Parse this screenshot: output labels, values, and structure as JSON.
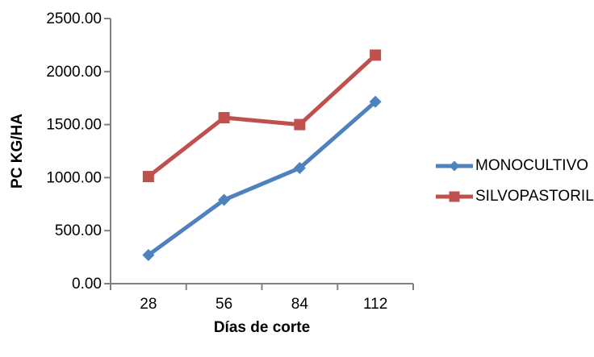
{
  "chart_data": {
    "type": "line",
    "title": "",
    "xlabel": "Días de corte",
    "ylabel": "PC KG/HA",
    "categories": [
      "28",
      "56",
      "84",
      "112"
    ],
    "series": [
      {
        "name": "MONOCULTIVO",
        "color": "#4F81BD",
        "marker": "diamond",
        "values": [
          270,
          790,
          1090,
          1715
        ]
      },
      {
        "name": "SILVOPASTORIL",
        "color": "#C0504D",
        "marker": "square",
        "values": [
          1010,
          1565,
          1500,
          2155
        ]
      }
    ],
    "ylim": [
      0,
      2500
    ],
    "ytick_values": [
      0,
      500,
      1000,
      1500,
      2000,
      2500
    ],
    "ytick_labels": [
      "0.00",
      "500.00",
      "1000.00",
      "1500.00",
      "2000.00",
      "2500.00"
    ],
    "grid": false,
    "legend_position": "right",
    "axis_color": "#808080"
  }
}
